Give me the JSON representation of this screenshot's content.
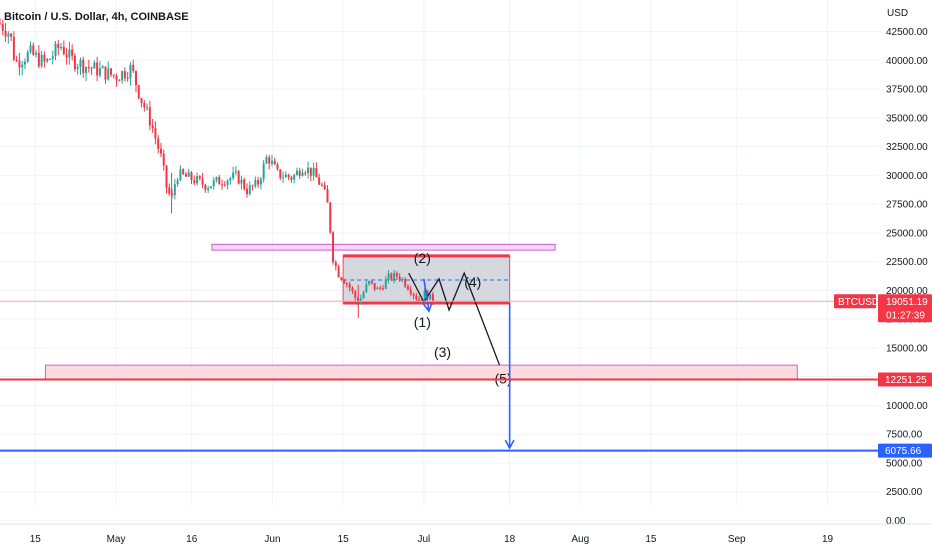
{
  "chart_data": {
    "type": "candlestick",
    "title": "Bitcoin / U.S. Dollar, 4h, COINBASE",
    "y_unit": "USD",
    "ylim": [
      0,
      45000
    ],
    "y_ticks": [
      "0.00",
      "2500.00",
      "5000.00",
      "7500.00",
      "10000.00",
      "12500.00",
      "15000.00",
      "17500.00",
      "20000.00",
      "22500.00",
      "25000.00",
      "27500.00",
      "30000.00",
      "32500.00",
      "35000.00",
      "37500.00",
      "40000.00",
      "42500.00"
    ],
    "x_range": [
      "2022-04-08",
      "2022-09-29"
    ],
    "x_ticks": [
      {
        "label": "15",
        "date": "2022-04-15"
      },
      {
        "label": "May",
        "date": "2022-05-01"
      },
      {
        "label": "16",
        "date": "2022-05-16"
      },
      {
        "label": "Jun",
        "date": "2022-06-01"
      },
      {
        "label": "15",
        "date": "2022-06-15"
      },
      {
        "label": "Jul",
        "date": "2022-07-01"
      },
      {
        "label": "18",
        "date": "2022-07-18"
      },
      {
        "label": "Aug",
        "date": "2022-08-01"
      },
      {
        "label": "15",
        "date": "2022-08-15"
      },
      {
        "label": "Sep",
        "date": "2022-09-01"
      },
      {
        "label": "19",
        "date": "2022-09-19"
      }
    ],
    "price_path": [
      [
        "2022-04-08",
        43200
      ],
      [
        "2022-04-10",
        42300
      ],
      [
        "2022-04-11",
        39800
      ],
      [
        "2022-04-14",
        40600
      ],
      [
        "2022-04-17",
        39700
      ],
      [
        "2022-04-20",
        41300
      ],
      [
        "2022-04-22",
        40100
      ],
      [
        "2022-04-25",
        39500
      ],
      [
        "2022-04-27",
        39200
      ],
      [
        "2022-04-29",
        38900
      ],
      [
        "2022-05-01",
        38600
      ],
      [
        "2022-05-04",
        39300
      ],
      [
        "2022-05-06",
        36600
      ],
      [
        "2022-05-08",
        34500
      ],
      [
        "2022-05-10",
        31400
      ],
      [
        "2022-05-11",
        29000
      ],
      [
        "2022-05-12",
        27800
      ],
      [
        "2022-05-13",
        30100
      ],
      [
        "2022-05-16",
        29700
      ],
      [
        "2022-05-19",
        29100
      ],
      [
        "2022-05-22",
        29600
      ],
      [
        "2022-05-25",
        29900
      ],
      [
        "2022-05-27",
        28700
      ],
      [
        "2022-05-29",
        29200
      ],
      [
        "2022-05-31",
        31700
      ],
      [
        "2022-06-02",
        30100
      ],
      [
        "2022-06-05",
        29800
      ],
      [
        "2022-06-07",
        30800
      ],
      [
        "2022-06-09",
        30200
      ],
      [
        "2022-06-11",
        28900
      ],
      [
        "2022-06-12",
        27300
      ],
      [
        "2022-06-13",
        22800
      ],
      [
        "2022-06-14",
        21500
      ],
      [
        "2022-06-16",
        20500
      ],
      [
        "2022-06-18",
        18900
      ],
      [
        "2022-06-20",
        20700
      ],
      [
        "2022-06-22",
        20000
      ],
      [
        "2022-06-24",
        21100
      ],
      [
        "2022-06-26",
        21300
      ],
      [
        "2022-06-28",
        20300
      ],
      [
        "2022-06-30",
        19100
      ],
      [
        "2022-07-01",
        19800
      ],
      [
        "2022-07-03",
        19051
      ]
    ],
    "current_price": {
      "label": "BTCUSD",
      "value": "19051.19",
      "countdown": "01:27:39",
      "y": 19051.19
    },
    "price_levels": [
      {
        "label": "12251.25",
        "y": 12251.25,
        "color": "#f23645"
      },
      {
        "label": "6075.66",
        "y": 6075.66,
        "color": "#2962ff"
      }
    ],
    "zones": [
      {
        "x0": "2022-05-20",
        "x1": "2022-07-27",
        "y0": 23500,
        "y1": 24000,
        "fill": "#f3d5f4",
        "stroke": "#c04fcf"
      },
      {
        "x0": "2022-04-17",
        "x1": "2022-09-13",
        "y0": 12300,
        "y1": 13500,
        "fill": "#fdd9dc",
        "stroke": "#c04fcf"
      },
      {
        "x0": "2022-06-15",
        "x1": "2022-07-18",
        "y0": 18900,
        "y1": 23000,
        "fill": "#d1d4dc",
        "stroke": "#f23645"
      }
    ],
    "box_midline_y": 20900,
    "wave_path": [
      [
        "2022-06-28",
        21500
      ],
      [
        "2022-07-01",
        19000
      ],
      [
        "2022-07-04",
        21000
      ],
      [
        "2022-07-06",
        18300
      ],
      [
        "2022-07-09",
        21500
      ],
      [
        "2022-07-16",
        13500
      ]
    ],
    "wave_labels": [
      {
        "label": "(2)",
        "x": "2022-06-29",
        "y": 22400
      },
      {
        "label": "(1)",
        "x": "2022-06-29",
        "y": 16800
      },
      {
        "label": "(4)",
        "x": "2022-07-09",
        "y": 20300
      },
      {
        "label": "(3)",
        "x": "2022-07-03",
        "y": 14200
      },
      {
        "label": "(5)",
        "x": "2022-07-15",
        "y": 11900
      }
    ],
    "arrows": [
      {
        "x0": "2022-07-01",
        "y0": 21000,
        "x1": "2022-07-02",
        "y1": 18200,
        "color": "#2962ff"
      },
      {
        "x0": "2022-07-18",
        "y0": 18900,
        "x1": "2022-07-18",
        "y1": 6300,
        "color": "#2962ff"
      }
    ],
    "colors": {
      "up": "#26a69a",
      "down": "#f23645",
      "grid": "#f0f3fa",
      "text": "#131722",
      "axis_bg": "#ffffff"
    }
  }
}
